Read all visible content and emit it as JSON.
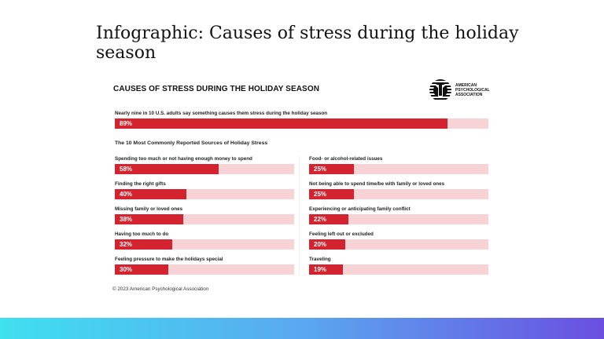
{
  "page_title": "Infographic: Causes of stress during the holiday season",
  "chart_data": {
    "type": "bar",
    "orientation": "horizontal",
    "title": "CAUSES OF STRESS DURING THE HOLIDAY SEASON",
    "headline": {
      "label": "Nearly nine in 10 U.S. adults say something causes them stress during the holiday season",
      "value": 89,
      "display": "89%"
    },
    "subtitle": "The 10 Most Commonly Reported Sources of Holiday Stress",
    "xlim": [
      0,
      100
    ],
    "left_column": [
      {
        "label": "Spending too much or not having enough money to spend",
        "value": 58,
        "display": "58%"
      },
      {
        "label": "Finding the right gifts",
        "value": 40,
        "display": "40%"
      },
      {
        "label": "Missing family or loved ones",
        "value": 38,
        "display": "38%"
      },
      {
        "label": "Having too much to do",
        "value": 32,
        "display": "32%"
      },
      {
        "label": "Feeling pressure to make the holidays special",
        "value": 30,
        "display": "30%"
      }
    ],
    "right_column": [
      {
        "label": "Food- or alcohol-related issues",
        "value": 25,
        "display": "25%"
      },
      {
        "label": "Not being able to spend time/be with family or loved ones",
        "value": 25,
        "display": "25%"
      },
      {
        "label": "Experiencing or anticipating family conflict",
        "value": 22,
        "display": "22%"
      },
      {
        "label": "Feeling left out or excluded",
        "value": 20,
        "display": "20%"
      },
      {
        "label": "Traveling",
        "value": 19,
        "display": "19%"
      }
    ],
    "colors": {
      "fill": "#d2232f",
      "track": "#f7d3d6"
    }
  },
  "logo": {
    "text": "AMERICAN PSYCHOLOGICAL ASSOCIATION"
  },
  "copyright": "© 2023 American Psychological Association"
}
